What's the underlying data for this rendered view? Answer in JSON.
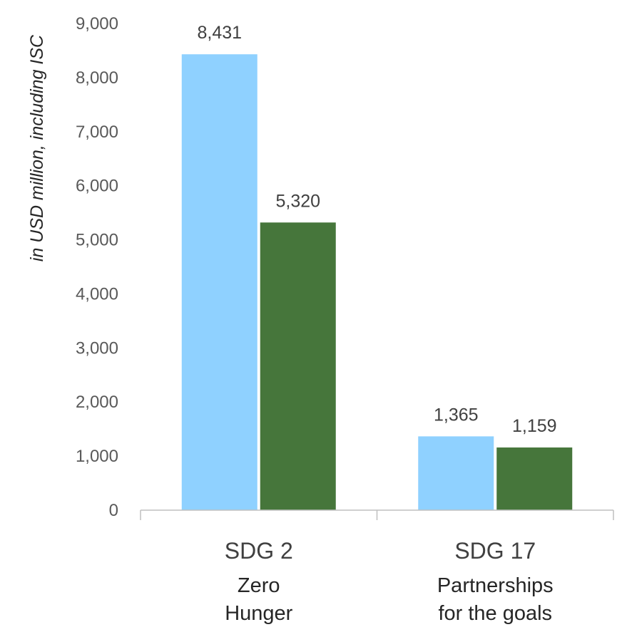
{
  "chart_data": {
    "type": "bar",
    "categories": [
      "SDG 2",
      "SDG 17"
    ],
    "category_sublabels": [
      [
        "Zero",
        "Hunger"
      ],
      [
        "Partnerships",
        "for the goals"
      ]
    ],
    "series": [
      {
        "values": [
          8431,
          1365
        ],
        "color": "#8fd1ff"
      },
      {
        "values": [
          5320,
          1159
        ],
        "color": "#46763b"
      }
    ],
    "data_labels": [
      [
        "8,431",
        "1,365"
      ],
      [
        "5,320",
        "1,159"
      ]
    ],
    "ylabel": "in USD million, including ISC",
    "ylim": [
      0,
      9000
    ],
    "yticks": [
      0,
      1000,
      2000,
      3000,
      4000,
      5000,
      6000,
      7000,
      8000,
      9000
    ],
    "ytick_labels": [
      "0",
      "1,000",
      "2,000",
      "3,000",
      "4,000",
      "5,000",
      "6,000",
      "7,000",
      "8,000",
      "9,000"
    ],
    "grid": false,
    "legend": "none"
  }
}
